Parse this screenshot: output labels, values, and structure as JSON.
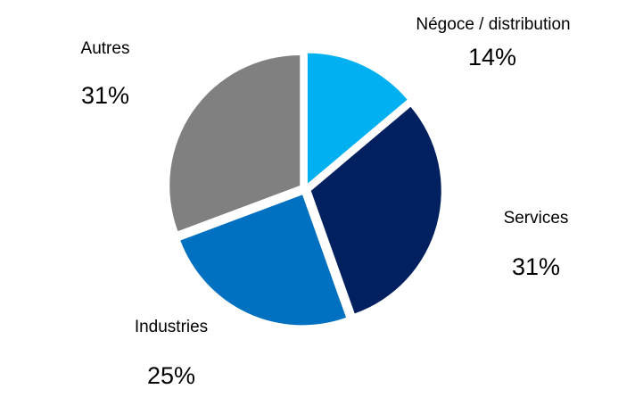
{
  "chart_data": {
    "type": "pie",
    "title": "",
    "start_angle_deg": 0,
    "direction": "clockwise",
    "exploded": true,
    "slices": [
      {
        "label": "Négoce / distribution",
        "value": 14,
        "value_label": "14%",
        "color": "#00B0F0"
      },
      {
        "label": "Services",
        "value": 31,
        "value_label": "31%",
        "color": "#002060"
      },
      {
        "label": "Industries",
        "value": 25,
        "value_label": "25%",
        "color": "#0070C0"
      },
      {
        "label": "Autres",
        "value": 31,
        "value_label": "31%",
        "color": "#808080"
      }
    ]
  }
}
